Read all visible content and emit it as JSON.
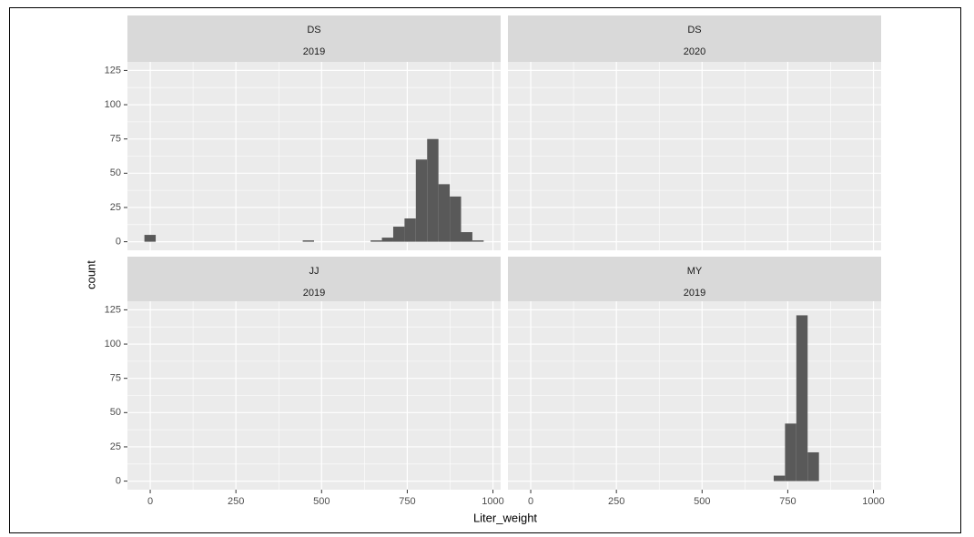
{
  "chart_data": {
    "type": "histogram",
    "x_label": "Liter_weight",
    "y_label": "count",
    "bins": [
      -17,
      16,
      49,
      82,
      115,
      148,
      181,
      214,
      247,
      280,
      313,
      346,
      379,
      412,
      445,
      478,
      511,
      544,
      577,
      610,
      643,
      676,
      709,
      742,
      775,
      808,
      841,
      874,
      907,
      940,
      973
    ],
    "xlim": [
      -66.5,
      1022.5
    ],
    "xticks": [
      0,
      250,
      500,
      750,
      1000
    ],
    "ylim": [
      -6.25,
      131.25
    ],
    "yticks": [
      0,
      25,
      50,
      75,
      100,
      125
    ],
    "color": "#595959",
    "grid": true,
    "facets": [
      {
        "strip": [
          "DS",
          "2019"
        ],
        "counts": [
          5,
          0,
          0,
          0,
          0,
          0,
          0,
          0,
          0,
          0,
          0,
          0,
          0,
          0,
          1,
          0,
          0,
          0,
          0,
          0,
          1,
          3,
          11,
          17,
          60,
          75,
          42,
          33,
          7,
          1
        ]
      },
      {
        "strip": [
          "DS",
          "2020"
        ],
        "counts": [
          0,
          0,
          0,
          0,
          0,
          0,
          0,
          0,
          0,
          0,
          0,
          0,
          0,
          0,
          0,
          0,
          0,
          0,
          0,
          0,
          0,
          0,
          0,
          0,
          0,
          0,
          0,
          0,
          0,
          0
        ]
      },
      {
        "strip": [
          "JJ",
          "2019"
        ],
        "counts": [
          0,
          0,
          0,
          0,
          0,
          0,
          0,
          0,
          0,
          0,
          0,
          0,
          0,
          0,
          0,
          0,
          0,
          0,
          0,
          0,
          0,
          0,
          0,
          0,
          0,
          0,
          0,
          0,
          0,
          0
        ]
      },
      {
        "strip": [
          "MY",
          "2019"
        ],
        "counts": [
          0,
          0,
          0,
          0,
          0,
          0,
          0,
          0,
          0,
          0,
          0,
          0,
          0,
          0,
          0,
          0,
          0,
          0,
          0,
          0,
          0,
          0,
          4,
          42,
          121,
          21,
          0,
          0,
          0,
          0
        ]
      }
    ]
  }
}
